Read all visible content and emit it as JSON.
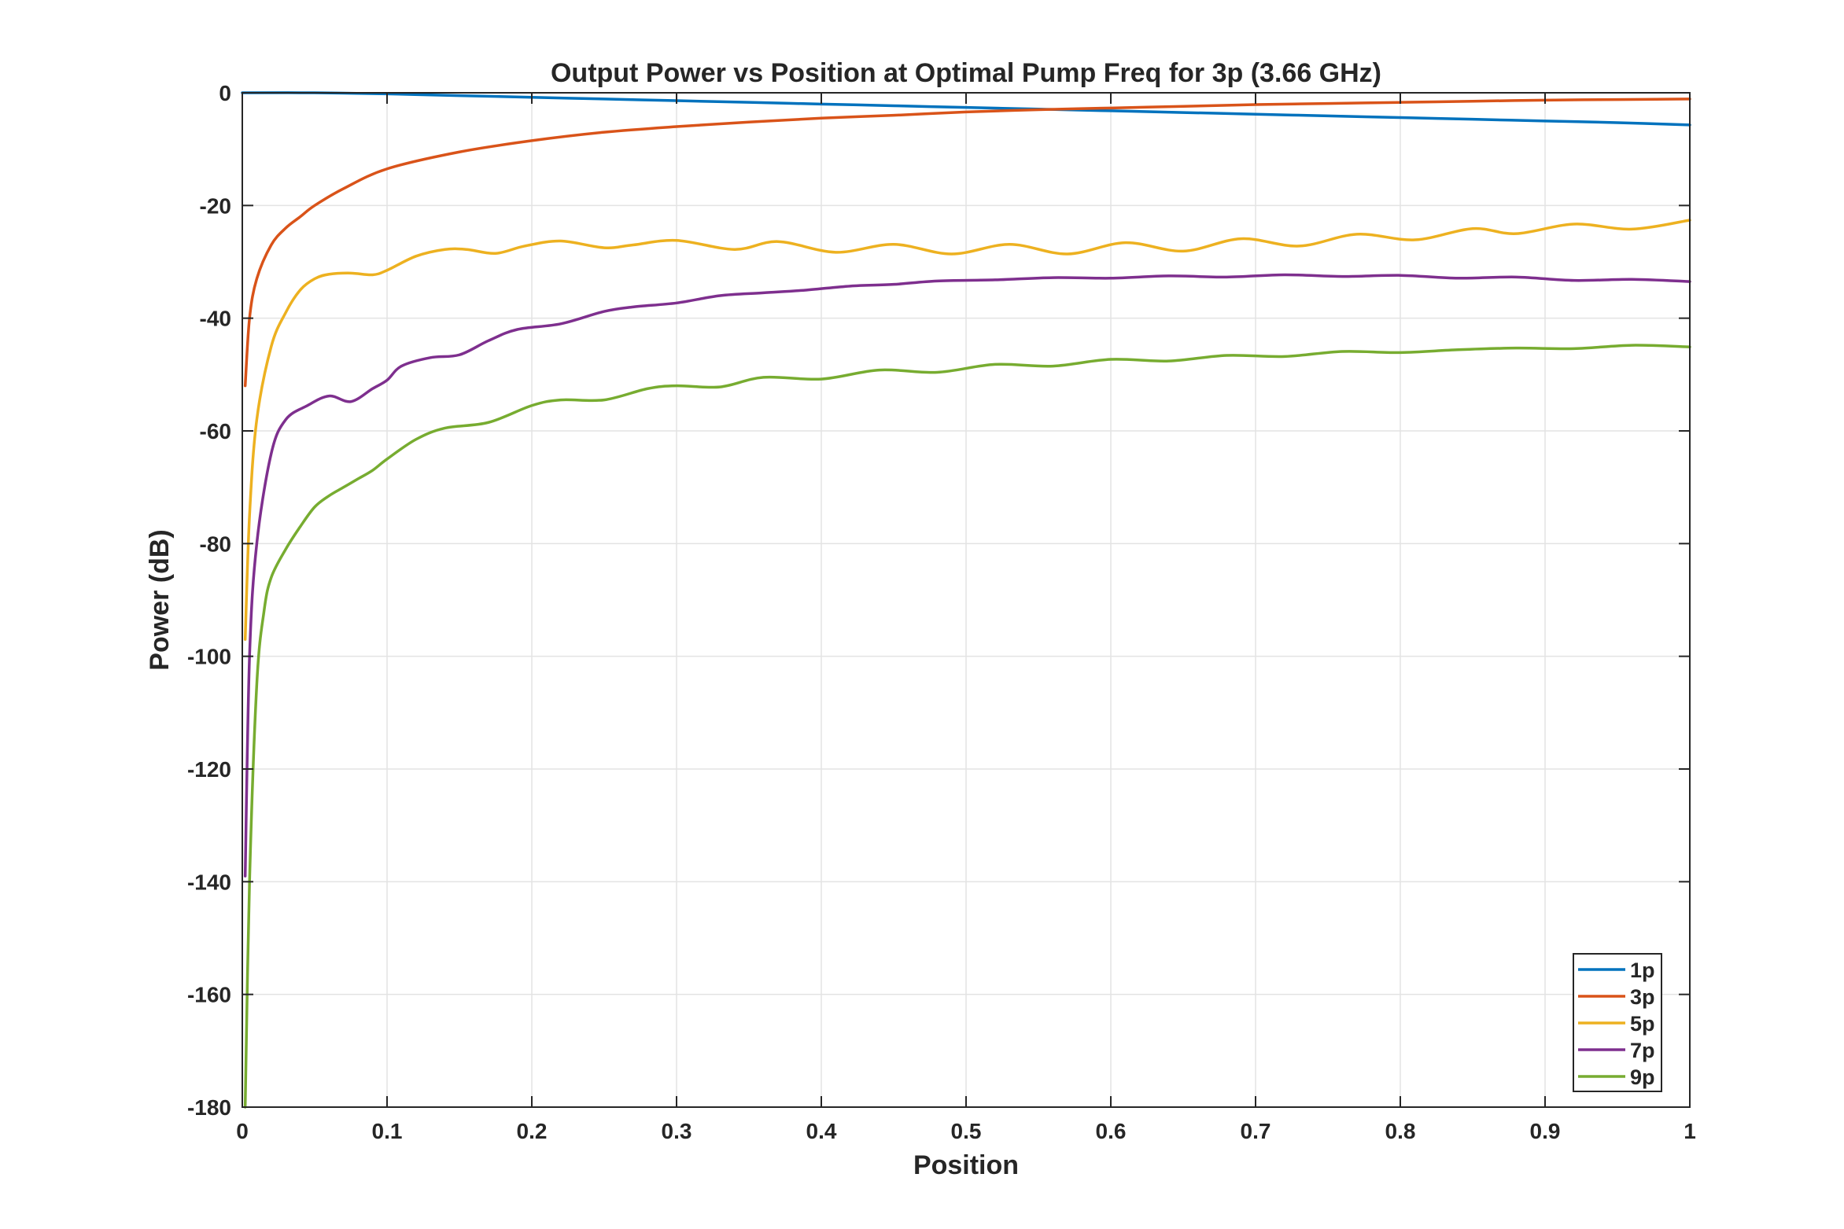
{
  "chart_data": {
    "type": "line",
    "title": "Output Power vs Position at Optimal Pump Freq for 3p (3.66 GHz)",
    "xlabel": "Position",
    "ylabel": "Power (dB)",
    "xlim": [
      0,
      1
    ],
    "ylim": [
      -180,
      0
    ],
    "xticks": [
      0,
      0.1,
      0.2,
      0.3,
      0.4,
      0.5,
      0.6,
      0.7,
      0.8,
      0.9,
      1
    ],
    "xtick_labels": [
      "0",
      "0.1",
      "0.2",
      "0.3",
      "0.4",
      "0.5",
      "0.6",
      "0.7",
      "0.8",
      "0.9",
      "1"
    ],
    "yticks": [
      0,
      -20,
      -40,
      -60,
      -80,
      -100,
      -120,
      -140,
      -160,
      -180
    ],
    "ytick_labels": [
      "0",
      "-20",
      "-40",
      "-60",
      "-80",
      "-100",
      "-120",
      "-140",
      "-160",
      "-180"
    ],
    "grid": true,
    "legend_position": "bottom-right",
    "series": [
      {
        "name": "1p",
        "color": "#0072BD",
        "points": [
          [
            0,
            0
          ],
          [
            0.05,
            0
          ],
          [
            0.1,
            -0.2
          ],
          [
            0.15,
            -0.5
          ],
          [
            0.2,
            -0.8
          ],
          [
            0.25,
            -1.1
          ],
          [
            0.3,
            -1.4
          ],
          [
            0.35,
            -1.7
          ],
          [
            0.4,
            -2.0
          ],
          [
            0.45,
            -2.3
          ],
          [
            0.5,
            -2.6
          ],
          [
            0.55,
            -2.9
          ],
          [
            0.6,
            -3.2
          ],
          [
            0.65,
            -3.5
          ],
          [
            0.7,
            -3.8
          ],
          [
            0.75,
            -4.1
          ],
          [
            0.8,
            -4.4
          ],
          [
            0.85,
            -4.7
          ],
          [
            0.9,
            -5.0
          ],
          [
            0.95,
            -5.3
          ],
          [
            1,
            -5.7
          ]
        ]
      },
      {
        "name": "3p",
        "color": "#D95319",
        "points": [
          [
            0.002,
            -52
          ],
          [
            0.005,
            -40
          ],
          [
            0.01,
            -33
          ],
          [
            0.02,
            -27
          ],
          [
            0.03,
            -24
          ],
          [
            0.04,
            -22
          ],
          [
            0.05,
            -20
          ],
          [
            0.07,
            -17
          ],
          [
            0.1,
            -13.5
          ],
          [
            0.15,
            -10.5
          ],
          [
            0.2,
            -8.5
          ],
          [
            0.25,
            -7
          ],
          [
            0.3,
            -6
          ],
          [
            0.35,
            -5.2
          ],
          [
            0.4,
            -4.5
          ],
          [
            0.45,
            -4
          ],
          [
            0.5,
            -3.4
          ],
          [
            0.55,
            -3
          ],
          [
            0.6,
            -2.7
          ],
          [
            0.65,
            -2.4
          ],
          [
            0.7,
            -2.1
          ],
          [
            0.75,
            -1.9
          ],
          [
            0.8,
            -1.7
          ],
          [
            0.85,
            -1.5
          ],
          [
            0.9,
            -1.3
          ],
          [
            0.95,
            -1.2
          ],
          [
            1,
            -1.1
          ]
        ]
      },
      {
        "name": "5p",
        "color": "#EDB120",
        "points": [
          [
            0.002,
            -97
          ],
          [
            0.005,
            -75
          ],
          [
            0.01,
            -58
          ],
          [
            0.02,
            -45
          ],
          [
            0.03,
            -39
          ],
          [
            0.04,
            -35
          ],
          [
            0.05,
            -33
          ],
          [
            0.06,
            -32.2
          ],
          [
            0.075,
            -32
          ],
          [
            0.09,
            -32.3
          ],
          [
            0.1,
            -31.5
          ],
          [
            0.12,
            -29
          ],
          [
            0.14,
            -27.8
          ],
          [
            0.155,
            -27.8
          ],
          [
            0.175,
            -28.5
          ],
          [
            0.195,
            -27.2
          ],
          [
            0.22,
            -26.3
          ],
          [
            0.25,
            -27.5
          ],
          [
            0.27,
            -27
          ],
          [
            0.3,
            -26.2
          ],
          [
            0.34,
            -27.8
          ],
          [
            0.37,
            -26.4
          ],
          [
            0.41,
            -28.3
          ],
          [
            0.45,
            -26.9
          ],
          [
            0.49,
            -28.6
          ],
          [
            0.53,
            -26.9
          ],
          [
            0.57,
            -28.6
          ],
          [
            0.61,
            -26.6
          ],
          [
            0.65,
            -28.1
          ],
          [
            0.69,
            -25.9
          ],
          [
            0.73,
            -27.2
          ],
          [
            0.77,
            -25.1
          ],
          [
            0.81,
            -26.1
          ],
          [
            0.85,
            -24.1
          ],
          [
            0.88,
            -25
          ],
          [
            0.92,
            -23.3
          ],
          [
            0.96,
            -24.2
          ],
          [
            1,
            -22.6
          ]
        ]
      },
      {
        "name": "7p",
        "color": "#7E2F8E",
        "points": [
          [
            0.002,
            -139
          ],
          [
            0.005,
            -100
          ],
          [
            0.01,
            -80
          ],
          [
            0.02,
            -64
          ],
          [
            0.03,
            -58
          ],
          [
            0.045,
            -55.5
          ],
          [
            0.06,
            -53.8
          ],
          [
            0.075,
            -54.8
          ],
          [
            0.09,
            -52.5
          ],
          [
            0.1,
            -51
          ],
          [
            0.11,
            -48.5
          ],
          [
            0.13,
            -47
          ],
          [
            0.15,
            -46.5
          ],
          [
            0.17,
            -44
          ],
          [
            0.19,
            -42
          ],
          [
            0.22,
            -41
          ],
          [
            0.25,
            -38.8
          ],
          [
            0.27,
            -38
          ],
          [
            0.3,
            -37.3
          ],
          [
            0.33,
            -36
          ],
          [
            0.36,
            -35.5
          ],
          [
            0.39,
            -35
          ],
          [
            0.42,
            -34.3
          ],
          [
            0.45,
            -34
          ],
          [
            0.48,
            -33.4
          ],
          [
            0.52,
            -33.2
          ],
          [
            0.56,
            -32.8
          ],
          [
            0.6,
            -32.9
          ],
          [
            0.64,
            -32.5
          ],
          [
            0.68,
            -32.7
          ],
          [
            0.72,
            -32.3
          ],
          [
            0.76,
            -32.6
          ],
          [
            0.8,
            -32.4
          ],
          [
            0.84,
            -32.9
          ],
          [
            0.88,
            -32.7
          ],
          [
            0.92,
            -33.3
          ],
          [
            0.96,
            -33.1
          ],
          [
            1,
            -33.5
          ]
        ]
      },
      {
        "name": "9p",
        "color": "#77AC30",
        "points": [
          [
            0.002,
            -180
          ],
          [
            0.005,
            -140
          ],
          [
            0.01,
            -105
          ],
          [
            0.015,
            -92
          ],
          [
            0.02,
            -86
          ],
          [
            0.03,
            -81
          ],
          [
            0.04,
            -77
          ],
          [
            0.05,
            -73.5
          ],
          [
            0.06,
            -71.5
          ],
          [
            0.07,
            -70
          ],
          [
            0.08,
            -68.5
          ],
          [
            0.09,
            -67
          ],
          [
            0.1,
            -65
          ],
          [
            0.12,
            -61.5
          ],
          [
            0.14,
            -59.5
          ],
          [
            0.17,
            -58.5
          ],
          [
            0.2,
            -55.5
          ],
          [
            0.22,
            -54.5
          ],
          [
            0.25,
            -54.5
          ],
          [
            0.28,
            -52.5
          ],
          [
            0.3,
            -52
          ],
          [
            0.33,
            -52.2
          ],
          [
            0.36,
            -50.5
          ],
          [
            0.4,
            -50.8
          ],
          [
            0.44,
            -49.2
          ],
          [
            0.48,
            -49.6
          ],
          [
            0.52,
            -48.2
          ],
          [
            0.56,
            -48.5
          ],
          [
            0.6,
            -47.3
          ],
          [
            0.64,
            -47.6
          ],
          [
            0.68,
            -46.6
          ],
          [
            0.72,
            -46.8
          ],
          [
            0.76,
            -45.9
          ],
          [
            0.8,
            -46.1
          ],
          [
            0.84,
            -45.6
          ],
          [
            0.88,
            -45.3
          ],
          [
            0.92,
            -45.4
          ],
          [
            0.96,
            -44.8
          ],
          [
            1,
            -45.1
          ]
        ]
      }
    ]
  }
}
